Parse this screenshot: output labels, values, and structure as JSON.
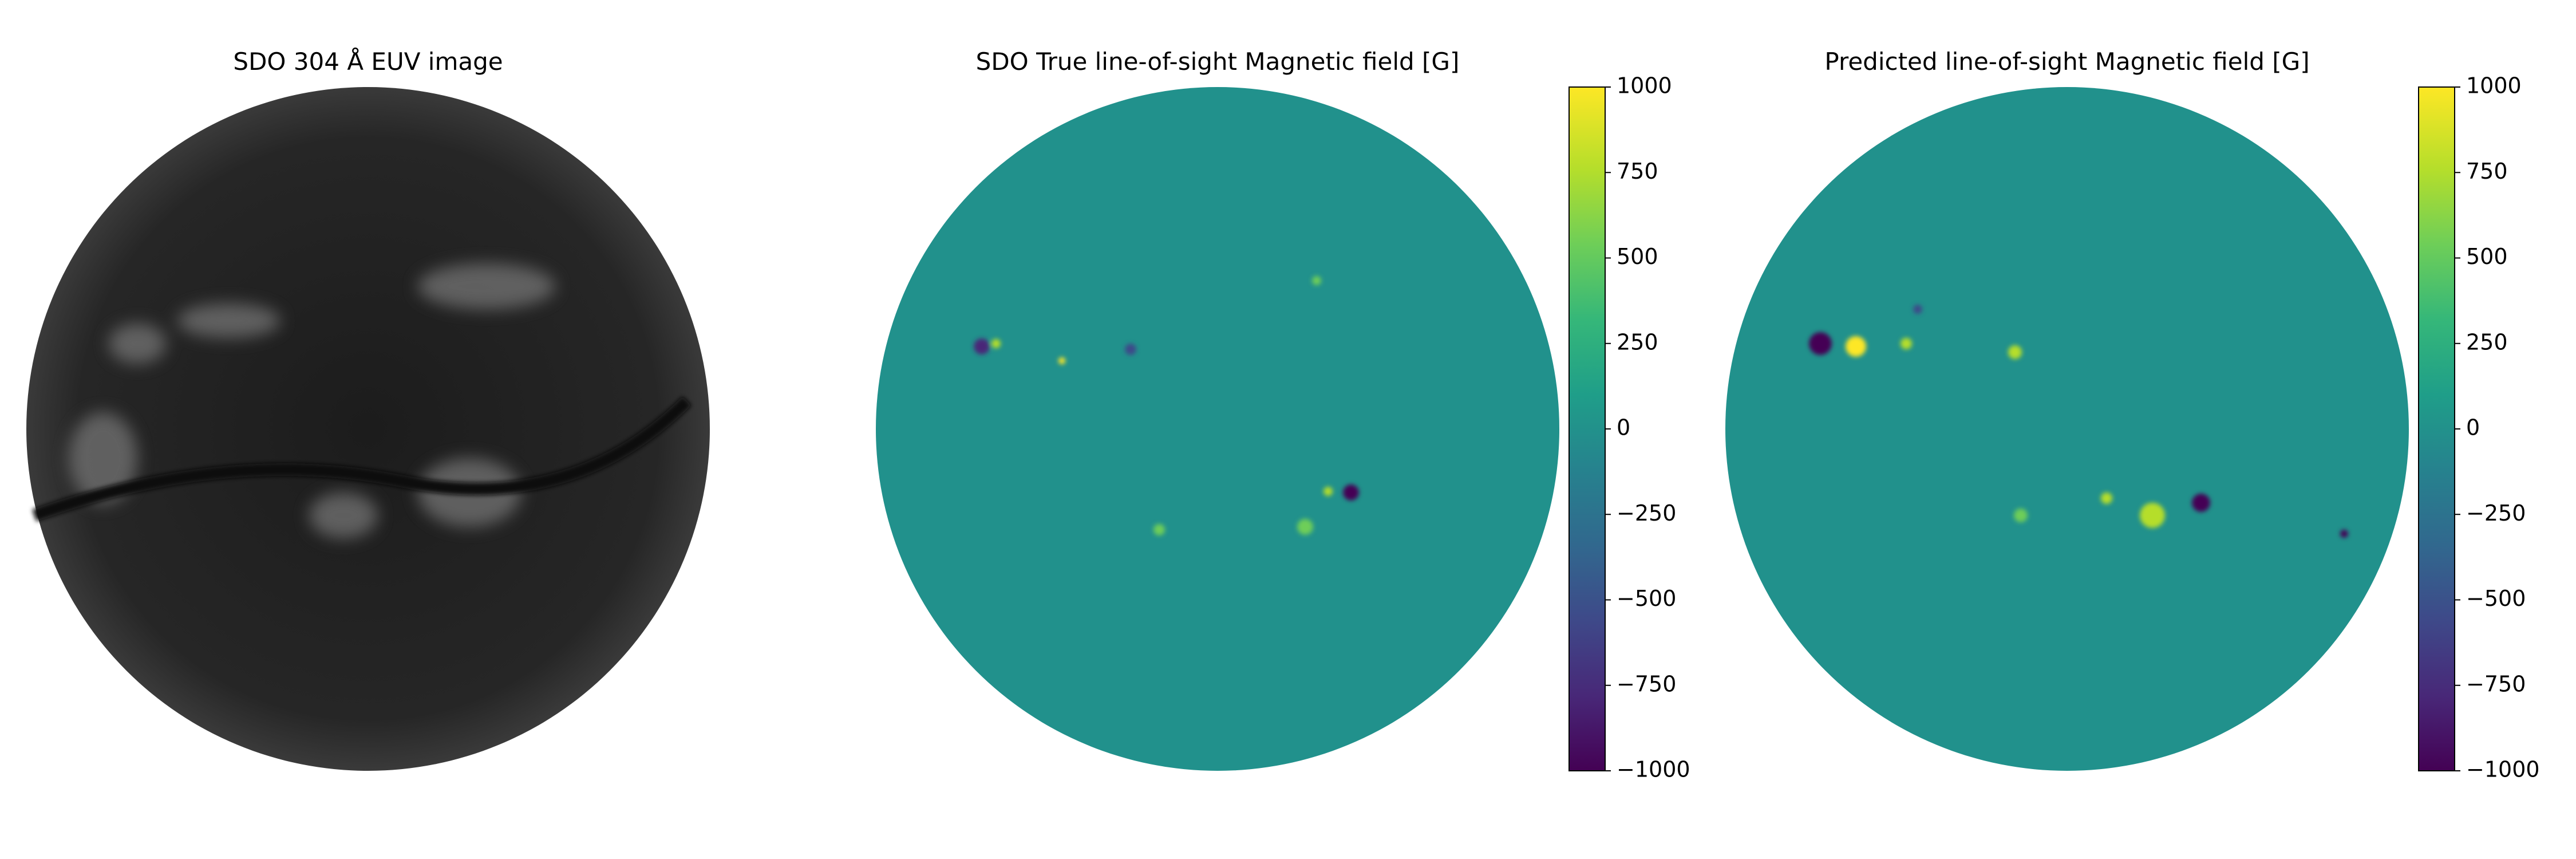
{
  "chart_data": [
    {
      "type": "image",
      "title": "SDO 304 Å EUV image",
      "colormap": "gray"
    },
    {
      "type": "image",
      "title": "SDO True line-of-sight Magnetic field [G]",
      "colormap": "viridis",
      "ylim": [
        -1000,
        1000
      ],
      "yticks": [
        {
          "value": -1000,
          "label": "−1000"
        },
        {
          "value": -750,
          "label": "−750"
        },
        {
          "value": -500,
          "label": "−500"
        },
        {
          "value": -250,
          "label": "−250"
        },
        0,
        250,
        500,
        750,
        1000
      ]
    },
    {
      "type": "image",
      "title": "Predicted line-of-sight Magnetic field [G]",
      "colormap": "viridis",
      "ylim": [
        -1000,
        1000
      ],
      "yticks": [
        {
          "value": -1000,
          "label": "−1000"
        },
        {
          "value": -750,
          "label": "−750"
        },
        {
          "value": -500,
          "label": "−500"
        },
        {
          "value": -250,
          "label": "−250"
        },
        0,
        250,
        500,
        750,
        1000
      ]
    }
  ]
}
